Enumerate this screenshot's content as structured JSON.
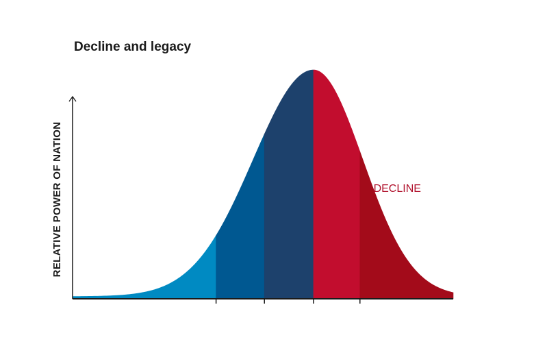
{
  "chart_data": {
    "type": "area",
    "title": "Decline and legacy",
    "xlabel": "",
    "ylabel": "RELATIVE POWER OF NATION",
    "x_tick_labels": [],
    "xlim": [
      0,
      100
    ],
    "ylim": [
      0,
      1
    ],
    "curve": {
      "peak_x": 63.3,
      "peak_y": 1.0,
      "spread_left": 15.8,
      "spread_right": 12.9,
      "baseline": 0.01
    },
    "segment_boundaries_x": [
      0,
      37.7,
      50.4,
      63.3,
      75.5,
      100
    ],
    "segments": [
      {
        "color": "#008AC2"
      },
      {
        "color": "#005891"
      },
      {
        "color": "#1D416C"
      },
      {
        "color": "#C20D2E"
      },
      {
        "color": "#A30B1A"
      }
    ],
    "annotations": [
      {
        "text": "DECLINE",
        "x": 85.3,
        "y": 0.48,
        "color": "#B0102B"
      }
    ],
    "grid": false,
    "legend": "none"
  }
}
